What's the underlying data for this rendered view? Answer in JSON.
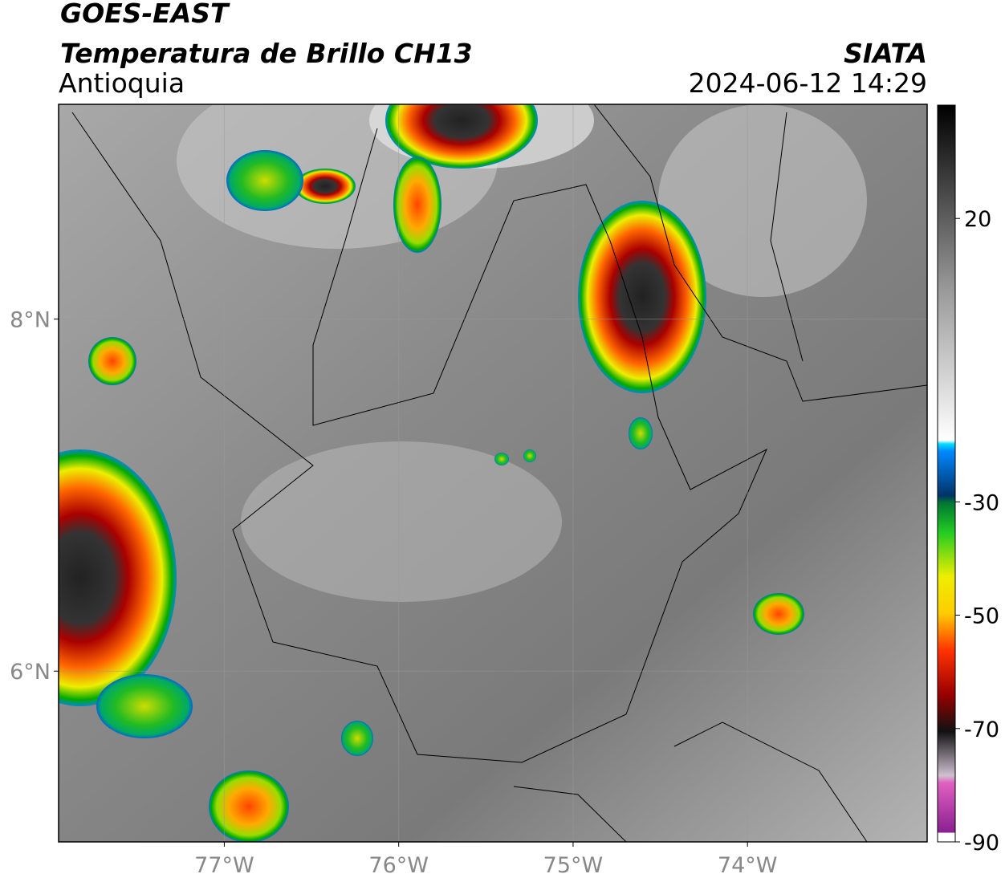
{
  "header": {
    "title": "GOES-EAST",
    "subtitle": "Temperatura de Brillo CH13",
    "region": "Antioquia",
    "source": "SIATA",
    "datetime": "2024-06-12 14:29"
  },
  "map": {
    "xlim": [
      -77.95,
      -72.97
    ],
    "ylim": [
      5.03,
      9.22
    ],
    "xticks": [
      {
        "value": -77,
        "label": "77°W"
      },
      {
        "value": -76,
        "label": "76°W"
      },
      {
        "value": -75,
        "label": "75°W"
      },
      {
        "value": -74,
        "label": "74°W"
      }
    ],
    "yticks": [
      {
        "value": 8,
        "label": "8°N"
      },
      {
        "value": 6,
        "label": "6°N"
      }
    ]
  },
  "colorbar": {
    "lim": [
      -90,
      40
    ],
    "ticks": [
      20,
      -30,
      -50,
      -70,
      -90
    ]
  }
}
